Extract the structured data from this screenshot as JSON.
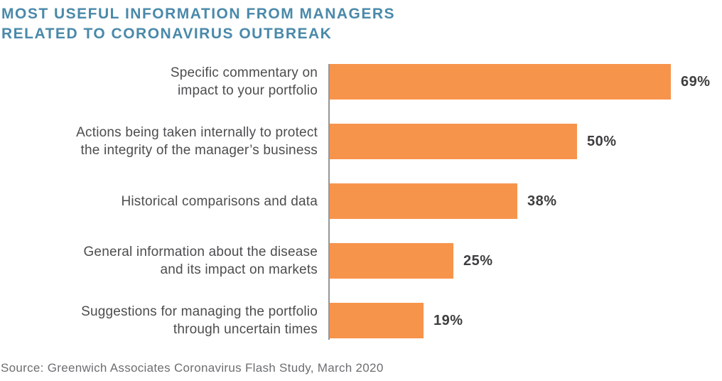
{
  "header": {
    "title_line1": "MOST USEFUL INFORMATION FROM MANAGERS",
    "title_line2": "RELATED TO CORONAVIRUS OUTBREAK"
  },
  "colors": {
    "bar": "#F7944C",
    "title_text": "#4A89AA",
    "axis_line": "#969696",
    "category_text": "#4D4D4F",
    "value_text": "#3E3E40",
    "source_text": "#6D6E71"
  },
  "chart_data": {
    "type": "bar",
    "orientation": "horizontal",
    "title": "MOST USEFUL INFORMATION FROM MANAGERS RELATED TO CORONAVIRUS OUTBREAK",
    "categories": [
      "Specific commentary on\nimpact to your portfolio",
      "Actions being taken internally to protect\nthe integrity of the manager’s business",
      "Historical comparisons and data",
      "General information about the disease\nand its impact on markets",
      "Suggestions for managing the portfolio\nthrough uncertain times"
    ],
    "values": [
      69,
      50,
      38,
      25,
      19
    ],
    "value_labels": [
      "69%",
      "50%",
      "38%",
      "25%",
      "19%"
    ],
    "xlabel": "",
    "ylabel": "",
    "xlim": [
      0,
      77
    ],
    "grid": false,
    "legend": false,
    "source": "Source: Greenwich Associates Coronavirus Flash Study, March 2020"
  }
}
